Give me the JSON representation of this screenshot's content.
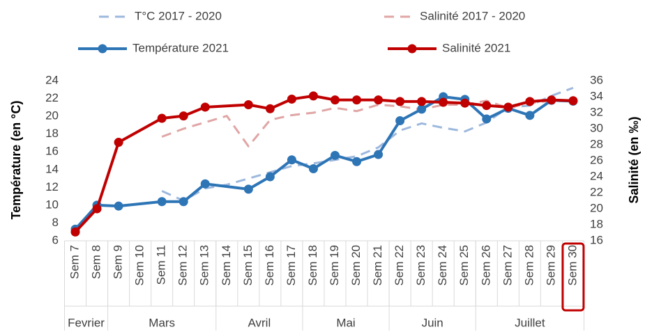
{
  "chart_data": {
    "type": "line",
    "y_label": "Température (en °C)",
    "y2_label": "Salinité (en ‰)",
    "categories": [
      "Sem 7",
      "Sem 8",
      "Sem 9",
      "Sem 10",
      "Sem 11",
      "Sem 12",
      "Sem 13",
      "Sem 14",
      "Sem 15",
      "Sem 16",
      "Sem 17",
      "Sem 18",
      "Sem 19",
      "Sem 20",
      "Sem 21",
      "Sem 22",
      "Sem 23",
      "Sem 24",
      "Sem 25",
      "Sem 26",
      "Sem 27",
      "Sem 28",
      "Sem 29",
      "Sem 30"
    ],
    "groups": [
      {
        "label": "Fevrier",
        "span": 2
      },
      {
        "label": "Mars",
        "span": 5
      },
      {
        "label": "Avril",
        "span": 4
      },
      {
        "label": "Mai",
        "span": 4
      },
      {
        "label": "Juin",
        "span": 4
      },
      {
        "label": "Juillet",
        "span": 5
      }
    ],
    "series": [
      {
        "name": "T°C 2017 - 2020",
        "color": "#9db8dd",
        "dashed": true,
        "markers": false,
        "axis": "y",
        "values": [
          null,
          null,
          null,
          null,
          11.6,
          10.5,
          11.9,
          12.3,
          13.0,
          13.7,
          14.4,
          14.7,
          15.1,
          15.5,
          16.5,
          18.4,
          19.2,
          18.7,
          18.3,
          19.3,
          21.0,
          21.2,
          22.3,
          23.2
        ]
      },
      {
        "name": "Salinité 2017 - 2020",
        "color": "#e0a5a5",
        "dashed": true,
        "markers": false,
        "axis": "y2",
        "values": [
          null,
          null,
          null,
          null,
          29.0,
          30.0,
          30.8,
          31.6,
          27.8,
          31.1,
          31.7,
          32.0,
          32.6,
          32.2,
          33.0,
          32.8,
          32.4,
          33.0,
          33.0,
          33.5,
          32.6,
          33.2,
          33.5,
          33.4
        ]
      },
      {
        "name": "Température 2021",
        "color": "#2e75b6",
        "dashed": false,
        "markers": true,
        "axis": "y",
        "values": [
          7.3,
          10.0,
          9.9,
          null,
          10.4,
          10.4,
          12.4,
          null,
          11.8,
          13.2,
          15.1,
          14.1,
          15.6,
          14.9,
          15.7,
          19.5,
          20.8,
          22.2,
          21.9,
          19.7,
          20.9,
          20.1,
          21.8,
          21.7
        ]
      },
      {
        "name": "Salinité 2021",
        "color": "#c00000",
        "dashed": false,
        "markers": true,
        "axis": "y2",
        "values": [
          17.1,
          20.0,
          28.3,
          null,
          31.3,
          31.6,
          32.7,
          null,
          33.0,
          32.5,
          33.7,
          34.1,
          33.6,
          33.6,
          33.6,
          33.4,
          33.4,
          33.3,
          33.2,
          32.9,
          32.7,
          33.4,
          33.6,
          33.5
        ]
      }
    ],
    "connect_gaps": true,
    "ylim": [
      6,
      24
    ],
    "yticks": [
      6,
      8,
      10,
      12,
      14,
      16,
      18,
      20,
      22,
      24
    ],
    "y2lim": [
      16,
      36
    ],
    "y2ticks": [
      16,
      18,
      20,
      22,
      24,
      26,
      28,
      30,
      32,
      34,
      36
    ],
    "grid": false,
    "highlight": "Sem 30",
    "highlight_color": "#c00000"
  }
}
